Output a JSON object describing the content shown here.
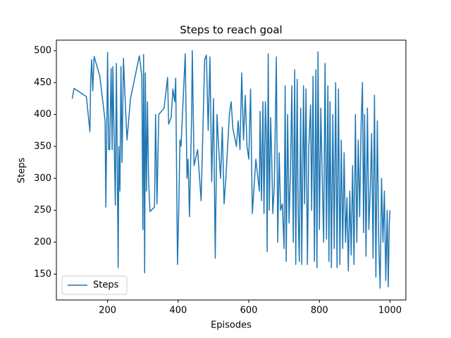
{
  "chart_data": {
    "type": "line",
    "title": "Steps to reach goal",
    "x_label": "Episodes",
    "y_label": "Steps",
    "x": [
      100,
      105,
      140,
      150,
      152,
      155,
      158,
      162,
      178,
      193,
      195,
      198,
      200,
      203,
      206,
      210,
      213,
      215,
      222,
      225,
      230,
      232,
      235,
      238,
      241,
      245,
      250,
      255,
      265,
      290,
      297,
      300,
      302,
      305,
      307,
      310,
      313,
      316,
      320,
      333,
      336,
      340,
      345,
      360,
      370,
      373,
      380,
      385,
      390,
      393,
      398,
      402,
      405,
      408,
      420,
      425,
      428,
      432,
      438,
      440,
      445,
      455,
      465,
      475,
      480,
      485,
      490,
      495,
      500,
      505,
      510,
      515,
      520,
      525,
      530,
      535,
      545,
      550,
      555,
      565,
      570,
      575,
      580,
      585,
      590,
      595,
      600,
      605,
      610,
      620,
      630,
      632,
      636,
      640,
      643,
      647,
      650,
      652,
      655,
      658,
      662,
      665,
      668,
      672,
      675,
      678,
      682,
      686,
      690,
      695,
      700,
      703,
      706,
      710,
      714,
      718,
      722,
      726,
      730,
      733,
      737,
      740,
      743,
      747,
      750,
      755,
      758,
      762,
      766,
      770,
      775,
      778,
      782,
      786,
      790,
      793,
      796,
      800,
      804,
      808,
      812,
      816,
      820,
      824,
      827,
      830,
      834,
      838,
      842,
      846,
      850,
      854,
      858,
      862,
      866,
      870,
      874,
      878,
      882,
      886,
      890,
      894,
      898,
      902,
      906,
      910,
      914,
      918,
      922,
      925,
      928,
      932,
      936,
      940,
      944,
      948,
      952,
      956,
      960,
      964,
      968,
      972,
      976,
      980,
      984,
      988,
      992,
      995,
      998,
      1000
    ],
    "series": [
      {
        "name": "Steps",
        "color": "#1f77b4",
        "values": [
          425,
          441,
          428,
          373,
          450,
          486,
          437,
          491,
          460,
          390,
          255,
          390,
          497,
          345,
          345,
          472,
          345,
          475,
          258,
          480,
          160,
          350,
          280,
          475,
          325,
          488,
          420,
          360,
          425,
          492,
          460,
          220,
          494,
          152,
          465,
          280,
          420,
          300,
          248,
          255,
          400,
          260,
          400,
          410,
          458,
          385,
          395,
          440,
          420,
          457,
          165,
          260,
          360,
          350,
          495,
          300,
          330,
          240,
          395,
          500,
          320,
          345,
          265,
          486,
          493,
          375,
          490,
          295,
          425,
          175,
          400,
          345,
          300,
          380,
          260,
          300,
          400,
          420,
          378,
          350,
          390,
          345,
          465,
          360,
          430,
          350,
          330,
          440,
          245,
          330,
          280,
          405,
          265,
          420,
          245,
          420,
          360,
          185,
          495,
          250,
          395,
          330,
          245,
          285,
          380,
          490,
          200,
          340,
          250,
          260,
          190,
          445,
          170,
          400,
          230,
          310,
          445,
          200,
          470,
          165,
          455,
          240,
          170,
          410,
          165,
          445,
          260,
          440,
          165,
          350,
          415,
          250,
          460,
          170,
          470,
          160,
          498,
          220,
          410,
          300,
          200,
          480,
          205,
          445,
          170,
          420,
          160,
          400,
          190,
          450,
          160,
          440,
          165,
          360,
          190,
          340,
          200,
          270,
          155,
          280,
          180,
          320,
          165,
          400,
          200,
          360,
          240,
          380,
          450,
          215,
          400,
          178,
          410,
          220,
          280,
          370,
          175,
          430,
          145,
          390,
          200,
          128,
          300,
          200,
          280,
          140,
          250,
          130,
          230,
          250
        ]
      }
    ],
    "xlim": [
      55,
      1045
    ],
    "ylim": [
      109.5,
      516.5
    ],
    "xticks": [
      200,
      400,
      600,
      800,
      1000
    ],
    "yticks": [
      150,
      200,
      250,
      300,
      350,
      400,
      450,
      500
    ],
    "legend": "lower left"
  }
}
